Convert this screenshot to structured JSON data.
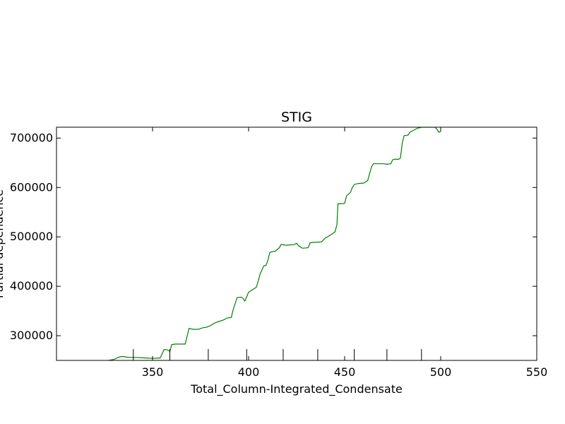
{
  "chart_data": {
    "type": "line",
    "title": "STIG",
    "xlabel": "Total_Column-Integrated_Condensate",
    "ylabel": "Partial dependence",
    "xlim": [
      300,
      550
    ],
    "ylim": [
      250000,
      722000
    ],
    "xticks": [
      350,
      400,
      450,
      500,
      550
    ],
    "yticks": [
      300000,
      400000,
      500000,
      600000,
      700000
    ],
    "ytick_labels": [
      "300000",
      "400000",
      "500000",
      "600000",
      "700000"
    ],
    "rug_x": [
      340,
      359,
      379,
      399,
      418,
      436,
      455,
      472,
      490
    ],
    "series": [
      {
        "color": "#008000",
        "x": [
          327,
          330,
          332,
          334,
          336,
          338,
          342,
          346,
          350,
          354,
          356,
          358,
          359,
          360,
          362,
          364,
          367,
          369,
          371,
          374,
          376,
          378,
          380,
          382,
          384,
          387,
          389,
          391,
          392,
          394,
          396,
          397,
          398,
          400,
          402,
          404,
          405,
          406,
          408,
          409,
          410,
          411,
          412,
          414,
          416,
          417,
          418,
          420,
          422,
          423,
          424,
          425,
          426,
          428,
          431,
          432,
          434,
          436,
          438,
          440,
          441,
          443,
          445,
          446,
          446.5,
          448,
          450,
          451,
          453,
          454,
          455,
          457,
          460,
          462,
          464,
          465,
          466,
          468,
          470,
          472,
          474,
          475,
          476,
          478,
          479,
          480,
          481,
          483,
          484,
          485,
          488,
          490,
          492,
          495,
          497,
          498,
          499,
          500
        ],
        "y": [
          250000,
          252000,
          256000,
          258000,
          257000,
          256000,
          256000,
          255000,
          254000,
          255000,
          272000,
          271000,
          268000,
          282000,
          283000,
          283000,
          283000,
          315000,
          313000,
          313000,
          316000,
          317000,
          320000,
          325000,
          328000,
          332000,
          336000,
          337000,
          353000,
          377000,
          378000,
          376000,
          370000,
          388000,
          393000,
          398000,
          410000,
          425000,
          442000,
          442000,
          452000,
          468000,
          470000,
          471000,
          478000,
          485000,
          484000,
          483000,
          484000,
          484000,
          485000,
          487000,
          482000,
          477000,
          478000,
          488000,
          489000,
          489000,
          490000,
          498000,
          500000,
          505000,
          510000,
          525000,
          567000,
          567000,
          568000,
          583000,
          590000,
          600000,
          606000,
          608000,
          609000,
          614000,
          642000,
          648000,
          648000,
          648000,
          648000,
          647000,
          648000,
          656000,
          657000,
          657000,
          659000,
          690000,
          705000,
          706000,
          712000,
          714000,
          720000,
          722000,
          722000,
          722000,
          722000,
          718000,
          712000,
          713000
        ]
      }
    ]
  }
}
